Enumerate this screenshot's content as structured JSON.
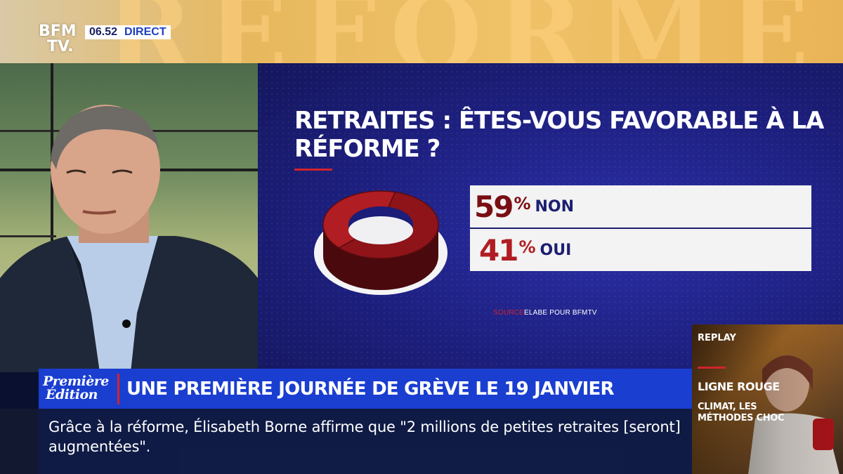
{
  "channel": {
    "logo_line1": "BFM",
    "logo_line2": "TV.",
    "time": "06.52",
    "live_tag": "DIRECT"
  },
  "banner": {
    "background_letters": "RÉFORME"
  },
  "chart_data": {
    "type": "pie",
    "title": "RETRAITES : ÊTES-VOUS FAVORABLE À LA RÉFORME ?",
    "categories": [
      "NON",
      "OUI"
    ],
    "values": [
      59,
      41
    ],
    "value_labels": [
      "59",
      "41"
    ],
    "unit": "%",
    "colors": [
      "#7a0f13",
      "#f3f3f3"
    ],
    "source_key": "SOURCE",
    "source_value": "ELABE POUR BFMTV"
  },
  "lower_third": {
    "show_line1": "Première",
    "show_line2": "Édition",
    "headline": "UNE PREMIÈRE JOURNÉE DE GRÈVE LE 19 JANVIER"
  },
  "ticker": {
    "text": "Grâce à la réforme, Élisabeth Borne affirme que \"2 millions de petites retraites [seront] augmentées\"."
  },
  "replay": {
    "label": "REPLAY",
    "show": "LIGNE ROUGE",
    "subtitle": "CLIMAT, LES MÉTHODES CHOC"
  },
  "colors": {
    "accent_red": "#d0242b",
    "panel_blue": "#1b1d78",
    "lower_third_blue": "#1a3ed0",
    "banner_gold": "#f0c268"
  }
}
